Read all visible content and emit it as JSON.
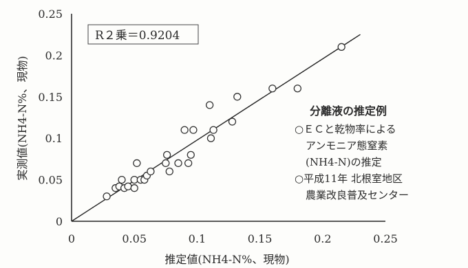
{
  "chart_data": {
    "type": "scatter",
    "xlabel": "推定値(NH4-N%、現物)",
    "ylabel": "実測値(NH4-N%、現物)",
    "xlim": [
      0,
      0.25
    ],
    "ylim": [
      0,
      0.25
    ],
    "x_ticks": [
      "0",
      "0.05",
      "0.1",
      "0.15",
      "0.2",
      "0.25"
    ],
    "y_ticks": [
      "0",
      "0.05",
      "0.1",
      "0.15",
      "0.2",
      "0.25"
    ],
    "grid": false,
    "marker": "open-circle",
    "annotation": "R２乗＝0.9204",
    "legend": {
      "title": "分離液の推定例",
      "items": [
        {
          "lines": [
            "○ＥＣと乾物率による",
            "アンモニア態窒素",
            "(NH4-N)の推定"
          ]
        },
        {
          "lines": [
            "○平成11年 北根室地区",
            "農業改良普及センター"
          ]
        }
      ],
      "placement": "right"
    },
    "fit_line": {
      "x": [
        0,
        0.23
      ],
      "y": [
        0,
        0.225
      ]
    },
    "points": [
      {
        "x": 0.028,
        "y": 0.03
      },
      {
        "x": 0.035,
        "y": 0.04
      },
      {
        "x": 0.038,
        "y": 0.042
      },
      {
        "x": 0.04,
        "y": 0.05
      },
      {
        "x": 0.042,
        "y": 0.04
      },
      {
        "x": 0.045,
        "y": 0.042
      },
      {
        "x": 0.05,
        "y": 0.04
      },
      {
        "x": 0.05,
        "y": 0.05
      },
      {
        "x": 0.052,
        "y": 0.07
      },
      {
        "x": 0.055,
        "y": 0.05
      },
      {
        "x": 0.058,
        "y": 0.05
      },
      {
        "x": 0.06,
        "y": 0.055
      },
      {
        "x": 0.063,
        "y": 0.06
      },
      {
        "x": 0.075,
        "y": 0.07
      },
      {
        "x": 0.076,
        "y": 0.08
      },
      {
        "x": 0.078,
        "y": 0.06
      },
      {
        "x": 0.085,
        "y": 0.07
      },
      {
        "x": 0.09,
        "y": 0.11
      },
      {
        "x": 0.093,
        "y": 0.07
      },
      {
        "x": 0.095,
        "y": 0.08
      },
      {
        "x": 0.097,
        "y": 0.11
      },
      {
        "x": 0.11,
        "y": 0.14
      },
      {
        "x": 0.111,
        "y": 0.1
      },
      {
        "x": 0.113,
        "y": 0.11
      },
      {
        "x": 0.128,
        "y": 0.12
      },
      {
        "x": 0.132,
        "y": 0.15
      },
      {
        "x": 0.16,
        "y": 0.16
      },
      {
        "x": 0.18,
        "y": 0.16
      },
      {
        "x": 0.215,
        "y": 0.21
      }
    ]
  }
}
